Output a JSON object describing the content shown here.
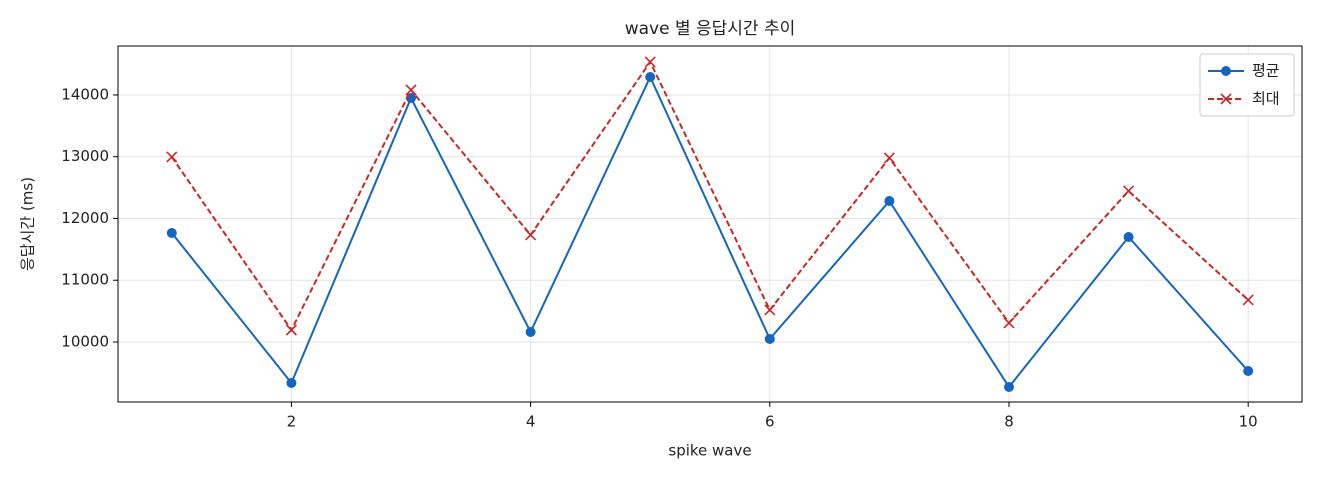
{
  "chart_data": {
    "type": "line",
    "title": "wave 별 응답시간 추이",
    "xlabel": "spike wave",
    "ylabel": "응답시간 (ms)",
    "x": [
      1,
      2,
      3,
      4,
      5,
      6,
      7,
      8,
      9,
      10
    ],
    "series": [
      {
        "name": "평균",
        "color": "#1565c0",
        "marker": "o",
        "linestyle": "solid",
        "values": [
          11765,
          9336,
          13951,
          10162,
          14291,
          10049,
          12283,
          9271,
          11700,
          9530
        ]
      },
      {
        "name": "최대",
        "color": "#c62828",
        "marker": "x",
        "linestyle": "dashed",
        "values": [
          12996,
          10194,
          14081,
          11733,
          14534,
          10518,
          12980,
          10308,
          12445,
          10680
        ]
      }
    ],
    "xlim": [
      0.55,
      10.45
    ],
    "xticks": [
      2,
      4,
      6,
      8,
      10
    ],
    "ylim": [
      9028,
      14793
    ],
    "yticks": [
      10000,
      11000,
      12000,
      13000,
      14000
    ],
    "grid": true,
    "legend": "upper right"
  }
}
